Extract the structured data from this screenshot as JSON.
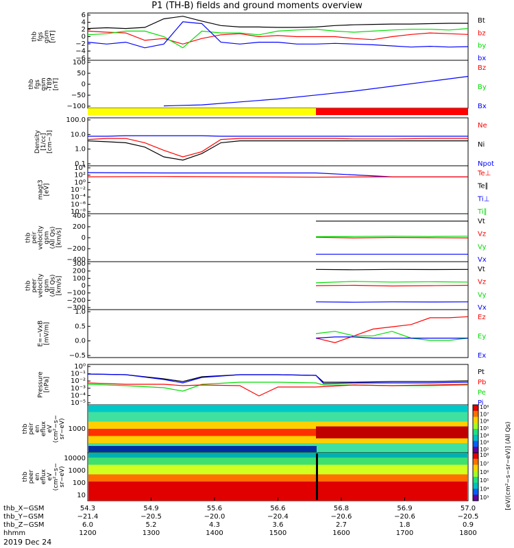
{
  "title": "P1 (TH-B) fields and ground moments overview",
  "date_label": "2019 Dec 24",
  "colors": {
    "black": "#000000",
    "red": "#ff0000",
    "green": "#00dd00",
    "blue": "#0000ff",
    "yellow": "#ffff00"
  },
  "chart_data": [
    {
      "type": "line",
      "id": "fgs",
      "ylabel": "thb\nfgs\ngsm\n[nT]",
      "yticks": [
        "6",
        "4",
        "2",
        "0",
        "−2",
        "−4",
        "−6"
      ],
      "ylim": [
        -6,
        6
      ],
      "legend": [
        {
          "name": "Bt",
          "color": "black"
        },
        {
          "name": "bz",
          "color": "red"
        },
        {
          "name": "by",
          "color": "green"
        },
        {
          "name": "bx",
          "color": "blue"
        }
      ],
      "series": [
        {
          "name": "Bt",
          "color": "black",
          "x": [
            0,
            0.05,
            0.1,
            0.15,
            0.2,
            0.25,
            0.3,
            0.35,
            0.4,
            0.45,
            0.5,
            0.55,
            0.6,
            0.65,
            0.7,
            0.75,
            0.8,
            0.85,
            0.9,
            0.95,
            1.0
          ],
          "values": [
            2.2,
            2.4,
            2.2,
            2.5,
            4.8,
            5.5,
            4.2,
            3.0,
            2.6,
            2.6,
            2.5,
            2.5,
            2.6,
            3.0,
            3.2,
            3.3,
            3.4,
            3.4,
            3.5,
            3.6,
            3.6
          ]
        },
        {
          "name": "bz",
          "color": "red",
          "x": [
            0,
            0.05,
            0.1,
            0.15,
            0.2,
            0.25,
            0.3,
            0.35,
            0.4,
            0.45,
            0.5,
            0.55,
            0.6,
            0.65,
            0.7,
            0.75,
            0.8,
            0.85,
            0.9,
            0.95,
            1.0
          ],
          "values": [
            1.5,
            1.2,
            1.0,
            -1.0,
            -0.5,
            -2.0,
            -0.5,
            0.5,
            0.8,
            0.0,
            0.3,
            0.0,
            0.0,
            0.0,
            -0.5,
            -0.8,
            0.0,
            0.6,
            1.0,
            0.8,
            0.6
          ]
        },
        {
          "name": "by",
          "color": "green",
          "x": [
            0,
            0.05,
            0.1,
            0.15,
            0.2,
            0.25,
            0.3,
            0.35,
            0.4,
            0.45,
            0.5,
            0.55,
            0.6,
            0.65,
            0.7,
            0.75,
            0.8,
            0.85,
            0.9,
            0.95,
            1.0
          ],
          "values": [
            0.5,
            0.8,
            1.5,
            1.5,
            0.0,
            -3.0,
            1.5,
            1.0,
            1.0,
            0.5,
            1.5,
            1.8,
            2.0,
            1.5,
            1.2,
            1.5,
            1.8,
            2.0,
            2.0,
            1.8,
            2.2
          ]
        },
        {
          "name": "bx",
          "color": "blue",
          "x": [
            0,
            0.05,
            0.1,
            0.15,
            0.2,
            0.25,
            0.3,
            0.35,
            0.4,
            0.45,
            0.5,
            0.55,
            0.6,
            0.65,
            0.7,
            0.75,
            0.8,
            0.85,
            0.9,
            0.95,
            1.0
          ],
          "values": [
            -1.5,
            -2.0,
            -1.5,
            -3.0,
            -2.0,
            4.0,
            3.5,
            -1.5,
            -2.0,
            -1.5,
            -1.5,
            -2.0,
            -2.0,
            -1.8,
            -2.0,
            -2.2,
            -2.5,
            -2.8,
            -2.6,
            -2.8,
            -2.7
          ]
        }
      ]
    },
    {
      "type": "line",
      "id": "fgs_t89",
      "ylabel": "thb\nfgs\ngsm\n-T89\n[nT]",
      "yticks": [
        "100",
        "50",
        "0",
        "−50",
        "−100"
      ],
      "ylim": [
        -130,
        100
      ],
      "legend": [
        {
          "name": "Bz",
          "color": "red"
        },
        {
          "name": "By",
          "color": "green"
        },
        {
          "name": "Bx",
          "color": "blue"
        }
      ],
      "series": [
        {
          "name": "Bx",
          "color": "blue",
          "x": [
            0.2,
            0.3,
            0.4,
            0.5,
            0.6,
            0.7,
            0.8,
            0.9,
            1.0
          ],
          "values": [
            -125,
            -120,
            -105,
            -90,
            -70,
            -50,
            -25,
            0,
            25
          ]
        }
      ]
    },
    {
      "type": "bar",
      "id": "mode_bar",
      "segments": [
        {
          "from": 0.0,
          "to": 0.6,
          "color": "yellow"
        },
        {
          "from": 0.6,
          "to": 1.0,
          "color": "red"
        }
      ]
    },
    {
      "type": "line",
      "id": "density",
      "scale": "log",
      "ylabel": "Density\n[1/cc]\n[cm−3]",
      "yticks": [
        "100.0",
        "10.0",
        "1.0",
        "0.1"
      ],
      "ylim": [
        0.02,
        300
      ],
      "legend": [
        {
          "name": "Ne",
          "color": "red"
        },
        {
          "name": "Ni",
          "color": "black"
        },
        {
          "name": "Npot",
          "color": "blue"
        }
      ],
      "series": [
        {
          "name": "Ne",
          "color": "red",
          "x": [
            0,
            0.05,
            0.1,
            0.15,
            0.2,
            0.25,
            0.3,
            0.35,
            0.4,
            0.45,
            0.5,
            0.55,
            0.6,
            0.65,
            0.7,
            0.8,
            0.9,
            1.0
          ],
          "values": [
            4,
            5,
            5,
            2,
            0.4,
            0.1,
            0.3,
            4,
            5,
            5,
            5,
            5,
            5,
            5,
            4.5,
            4.5,
            5,
            5
          ]
        },
        {
          "name": "Ni",
          "color": "black",
          "x": [
            0,
            0.05,
            0.1,
            0.15,
            0.2,
            0.25,
            0.3,
            0.35,
            0.4,
            0.45,
            0.5,
            0.55,
            0.6,
            0.65,
            0.7,
            0.8,
            0.9,
            1.0
          ],
          "values": [
            3,
            2.5,
            2,
            0.8,
            0.1,
            0.05,
            0.2,
            2,
            3,
            3,
            3,
            3,
            3,
            3,
            3,
            3,
            3,
            3
          ]
        },
        {
          "name": "Npot",
          "color": "blue",
          "x": [
            0,
            0.05,
            0.1,
            0.15,
            0.2,
            0.25,
            0.3,
            0.35,
            0.4,
            0.45,
            0.5,
            0.55,
            0.6,
            0.65,
            0.7,
            0.8,
            0.9,
            1.0
          ],
          "values": [
            8,
            8,
            9,
            9,
            9,
            9,
            9,
            8,
            8,
            8,
            8,
            8,
            8,
            8,
            8,
            8,
            8,
            8
          ]
        }
      ]
    },
    {
      "type": "line",
      "id": "temperature",
      "scale": "log",
      "ylabel": "magt3\n[eV]",
      "yticks": [
        "10⁴",
        "10²",
        "10⁰",
        "10⁻²",
        "10⁻⁴",
        "10⁻⁶",
        "10⁻⁸"
      ],
      "ylim": [
        -9,
        5
      ],
      "legend": [
        {
          "name": "Te⊥",
          "color": "red"
        },
        {
          "name": "Te∥",
          "color": "black"
        },
        {
          "name": "Ti⊥",
          "color": "blue"
        },
        {
          "name": "Ti∥",
          "color": "green"
        }
      ],
      "series": [
        {
          "name": "Ti",
          "color": "blue",
          "x": [
            0,
            0.2,
            0.4,
            0.6,
            0.8,
            1.0
          ],
          "values": [
            3.3,
            3.2,
            3.2,
            3.2,
            2.0,
            2.0
          ]
        },
        {
          "name": "Te",
          "color": "red",
          "x": [
            0,
            0.2,
            0.4,
            0.6,
            0.8,
            1.0
          ],
          "values": [
            2.0,
            2.1,
            2.0,
            1.9,
            2.0,
            2.0
          ]
        }
      ]
    },
    {
      "type": "line",
      "id": "peir_vel",
      "ylabel": "thb\npeir\nvelocity\ngsm\n(All Qs)\n[km/s]",
      "yticks": [
        "400",
        "200",
        "0",
        "−200",
        "−400"
      ],
      "ylim": [
        -450,
        450
      ],
      "legend": [
        {
          "name": "Vt",
          "color": "black"
        },
        {
          "name": "Vz",
          "color": "red"
        },
        {
          "name": "Vy",
          "color": "green"
        },
        {
          "name": "Vx",
          "color": "blue"
        }
      ],
      "series": [
        {
          "name": "Vt",
          "color": "black",
          "x": [
            0.6,
            0.7,
            0.8,
            0.9,
            1.0
          ],
          "values": [
            330,
            330,
            330,
            330,
            330
          ]
        },
        {
          "name": "Vz",
          "color": "red",
          "x": [
            0.6,
            0.7,
            0.8,
            0.9,
            1.0
          ],
          "values": [
            10,
            -5,
            5,
            0,
            -5
          ]
        },
        {
          "name": "Vy",
          "color": "green",
          "x": [
            0.6,
            0.7,
            0.8,
            0.9,
            1.0
          ],
          "values": [
            20,
            25,
            30,
            25,
            30
          ]
        },
        {
          "name": "Vx",
          "color": "blue",
          "x": [
            0.6,
            0.7,
            0.8,
            0.9,
            1.0
          ],
          "values": [
            -330,
            -330,
            -330,
            -330,
            -330
          ]
        }
      ]
    },
    {
      "type": "line",
      "id": "peer_vel",
      "ylabel": "thb\npeer\nvelocity\ngsm\n(All Qs)\n[km/s]",
      "yticks": [
        "300",
        "200",
        "100",
        "0",
        "−100",
        "−200",
        "−300"
      ],
      "ylim": [
        -320,
        320
      ],
      "legend": [
        {
          "name": "Vt",
          "color": "black"
        },
        {
          "name": "Vz",
          "color": "red"
        },
        {
          "name": "Vy",
          "color": "green"
        },
        {
          "name": "Vx",
          "color": "blue"
        }
      ],
      "series": [
        {
          "name": "Vt",
          "color": "black",
          "x": [
            0.6,
            0.7,
            0.8,
            0.9,
            1.0
          ],
          "values": [
            230,
            225,
            230,
            228,
            230
          ]
        },
        {
          "name": "Vz",
          "color": "red",
          "x": [
            0.6,
            0.7,
            0.8,
            0.9,
            1.0
          ],
          "values": [
            0,
            5,
            -5,
            0,
            5
          ]
        },
        {
          "name": "Vy",
          "color": "green",
          "x": [
            0.6,
            0.7,
            0.8,
            0.9,
            1.0
          ],
          "values": [
            40,
            60,
            50,
            55,
            50
          ]
        },
        {
          "name": "Vx",
          "color": "blue",
          "x": [
            0.6,
            0.7,
            0.8,
            0.9,
            1.0
          ],
          "values": [
            -230,
            -235,
            -230,
            -232,
            -230
          ]
        }
      ]
    },
    {
      "type": "line",
      "id": "efield",
      "ylabel": "E=−VxB\n[mV/m]",
      "yticks": [
        "1.0",
        "0.5",
        "0.0",
        "−0.5"
      ],
      "ylim": [
        -0.8,
        1.2
      ],
      "legend": [
        {
          "name": "Ez",
          "color": "red"
        },
        {
          "name": "Ey",
          "color": "green"
        },
        {
          "name": "Ex",
          "color": "blue"
        }
      ],
      "series": [
        {
          "name": "Ez",
          "color": "red",
          "x": [
            0.6,
            0.65,
            0.7,
            0.75,
            0.8,
            0.85,
            0.9,
            0.95,
            1.0
          ],
          "values": [
            0.0,
            -0.2,
            0.1,
            0.4,
            0.5,
            0.6,
            0.9,
            0.9,
            0.95
          ]
        },
        {
          "name": "Ey",
          "color": "green",
          "x": [
            0.6,
            0.65,
            0.7,
            0.75,
            0.8,
            0.85,
            0.9,
            0.95,
            1.0
          ],
          "values": [
            0.2,
            0.3,
            0.1,
            0.1,
            0.3,
            0.0,
            -0.1,
            -0.1,
            0.0
          ]
        },
        {
          "name": "Ex",
          "color": "blue",
          "x": [
            0.6,
            0.65,
            0.7,
            0.75,
            0.8,
            0.85,
            0.9,
            0.95,
            1.0
          ],
          "values": [
            0.0,
            0.05,
            0.05,
            0.0,
            0.0,
            0.0,
            0.0,
            0.0,
            0.0
          ]
        }
      ]
    },
    {
      "type": "line",
      "id": "pressure",
      "scale": "log",
      "ylabel": "Pressure\n[nPa]",
      "yticks": [
        "10⁰",
        "10⁻¹",
        "10⁻²",
        "10⁻³",
        "10⁻⁴",
        "10⁻⁵"
      ],
      "ylim": [
        -5.3,
        0.2
      ],
      "legend": [
        {
          "name": "Pt",
          "color": "black"
        },
        {
          "name": "Pb",
          "color": "red"
        },
        {
          "name": "Pe",
          "color": "green"
        },
        {
          "name": "Pi",
          "color": "blue"
        }
      ],
      "series": [
        {
          "name": "Pt",
          "color": "black",
          "x": [
            0,
            0.1,
            0.2,
            0.25,
            0.3,
            0.4,
            0.5,
            0.6,
            0.62,
            0.7,
            0.8,
            0.9,
            1.0
          ],
          "values": [
            -1.0,
            -1.1,
            -1.7,
            -2.1,
            -1.4,
            -1.1,
            -1.1,
            -1.2,
            -2.2,
            -2.2,
            -2.1,
            -2.1,
            -2.0
          ]
        },
        {
          "name": "Pi",
          "color": "blue",
          "x": [
            0,
            0.1,
            0.2,
            0.25,
            0.3,
            0.4,
            0.5,
            0.6,
            0.62,
            0.7,
            0.8,
            0.9,
            1.0
          ],
          "values": [
            -1.0,
            -1.1,
            -1.8,
            -2.3,
            -1.5,
            -1.1,
            -1.1,
            -1.2,
            -2.4,
            -2.3,
            -2.3,
            -2.3,
            -2.2
          ]
        },
        {
          "name": "Pe",
          "color": "green",
          "x": [
            0,
            0.1,
            0.2,
            0.25,
            0.3,
            0.4,
            0.5,
            0.6,
            0.62,
            0.7,
            0.8,
            0.9,
            1.0
          ],
          "values": [
            -2.5,
            -2.7,
            -3.0,
            -3.5,
            -2.5,
            -2.2,
            -2.2,
            -2.3,
            -2.6,
            -2.6,
            -2.7,
            -2.7,
            -2.6
          ]
        },
        {
          "name": "Pb",
          "color": "red",
          "x": [
            0,
            0.1,
            0.2,
            0.25,
            0.3,
            0.4,
            0.45,
            0.5,
            0.6,
            0.7,
            0.8,
            0.9,
            1.0
          ],
          "values": [
            -2.3,
            -2.5,
            -2.5,
            -2.7,
            -2.6,
            -2.7,
            -4.2,
            -2.9,
            -2.9,
            -2.6,
            -2.7,
            -2.6,
            -2.5
          ]
        }
      ]
    },
    {
      "type": "heatmap",
      "id": "peir_en",
      "ylabel": "thb\npeir\nen\neflux\neV\n(cm²−s−\nsr−eV)",
      "yticks": [
        "1000"
      ],
      "colorbar_ticks": [
        "10⁸",
        "10⁷",
        "10⁶",
        "10⁵",
        "10⁴",
        "10³",
        "10²"
      ]
    },
    {
      "type": "heatmap",
      "id": "peer_en",
      "ylabel": "thb\npeer\nen\neflux\neV\n(cm²−s−\nsr−eV)",
      "yticks": [
        "10000",
        "1000",
        "100",
        "10"
      ],
      "colorbar_ticks": [
        "10⁸",
        "10⁷",
        "10⁶",
        "10⁵",
        "10⁴",
        "10³"
      ]
    }
  ],
  "colorbar_label": "[eV/(cm²−s−sr−eV)] (All Qs)",
  "x_axis": {
    "rows": [
      {
        "label": "thb_X−GSM",
        "values": [
          "54.3",
          "54.9",
          "55.6",
          "56.6",
          "56.8",
          "56.9",
          "57.0"
        ]
      },
      {
        "label": "thb_Y−GSM",
        "values": [
          "−21.4",
          "−20.5",
          "−20.0",
          "−20.4",
          "−20.6",
          "−20.6",
          "−20.5"
        ]
      },
      {
        "label": "thb_Z−GSM",
        "values": [
          "6.0",
          "5.2",
          "4.3",
          "3.6",
          "2.7",
          "1.8",
          "0.9"
        ]
      },
      {
        "label": "hhmm",
        "values": [
          "1200",
          "1300",
          "1400",
          "1500",
          "1600",
          "1700",
          "1800"
        ]
      }
    ]
  }
}
